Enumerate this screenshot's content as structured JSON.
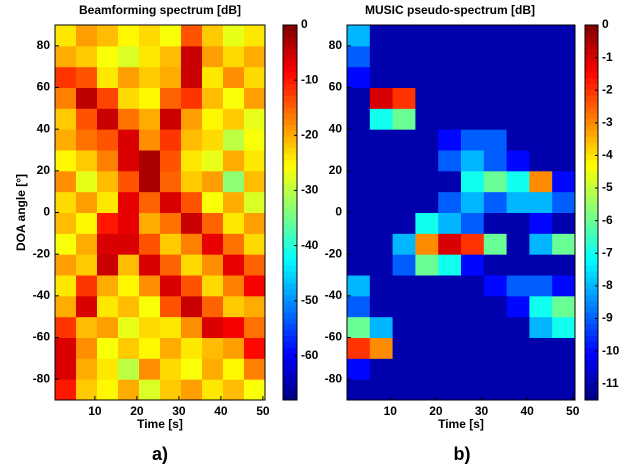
{
  "chart_data": [
    {
      "type": "heatmap",
      "title": "Beamforming spectrum [dB]",
      "xlabel": "Time [s]",
      "ylabel": "DOA angle [°]",
      "panel_label": "a)",
      "colormap": "jet",
      "x": [
        3,
        8,
        13,
        18,
        23,
        28,
        33,
        38,
        43,
        48
      ],
      "y": [
        -85,
        -75,
        -65,
        -55,
        -45,
        -35,
        -25,
        -15,
        -5,
        5,
        15,
        25,
        35,
        45,
        55,
        65,
        75,
        85
      ],
      "values": [
        [
          -10,
          -22,
          -25,
          -20,
          -28,
          -22,
          -19,
          -24,
          -21,
          -26
        ],
        [
          -6,
          -20,
          -24,
          -30,
          -18,
          -23,
          -26,
          -20,
          -25,
          -17
        ],
        [
          -6,
          -18,
          -26,
          -22,
          -25,
          -20,
          -24,
          -21,
          -19,
          -9
        ],
        [
          -12,
          -21,
          -19,
          -27,
          -23,
          -24,
          -18,
          -6,
          -8,
          -16
        ],
        [
          -20,
          -6,
          -24,
          -21,
          -26,
          -14,
          -5,
          -15,
          -22,
          -20
        ],
        [
          -24,
          -12,
          -20,
          -25,
          -18,
          -6,
          -14,
          -23,
          -17,
          -8
        ],
        [
          -19,
          -22,
          -5,
          -21,
          -6,
          -15,
          -23,
          -18,
          -7,
          -15
        ],
        [
          -26,
          -20,
          -6,
          -6,
          -14,
          -22,
          -17,
          -7,
          -16,
          -23
        ],
        [
          -21,
          -25,
          -10,
          -7,
          -20,
          -16,
          -5,
          -15,
          -24,
          -19
        ],
        [
          -23,
          -19,
          -24,
          -7,
          -15,
          -6,
          -14,
          -26,
          -20,
          -28
        ],
        [
          -18,
          -27,
          -21,
          -14,
          -3,
          -15,
          -22,
          -19,
          -33,
          -21
        ],
        [
          -25,
          -22,
          -17,
          -6,
          -3,
          -14,
          -24,
          -27,
          -20,
          -24
        ],
        [
          -20,
          -16,
          -14,
          -6,
          -18,
          -12,
          -21,
          -23,
          -30,
          -26
        ],
        [
          -22,
          -14,
          -5,
          -16,
          -20,
          -5,
          -19,
          -25,
          -22,
          -27
        ],
        [
          -17,
          -4,
          -13,
          -23,
          -25,
          -15,
          -12,
          -21,
          -26,
          -19
        ],
        [
          -12,
          -14,
          -24,
          -19,
          -22,
          -20,
          -5,
          -24,
          -18,
          -23
        ],
        [
          -20,
          -22,
          -26,
          -28,
          -24,
          -21,
          -5,
          -19,
          -23,
          -20
        ],
        [
          -24,
          -19,
          -21,
          -25,
          -23,
          -26,
          -14,
          -22,
          -27,
          -24
        ]
      ],
      "xlim": [
        0.5,
        50.5
      ],
      "xticks": [
        10,
        20,
        30,
        40,
        50
      ],
      "ylim": [
        -90,
        90
      ],
      "yticks": [
        -80,
        -60,
        -40,
        -20,
        0,
        20,
        40,
        60,
        80
      ],
      "clim": [
        -68,
        0
      ],
      "cticks": [
        0,
        -10,
        -20,
        -30,
        -40,
        -50,
        -60
      ]
    },
    {
      "type": "heatmap",
      "title": "MUSIC pseudo-spectrum [dB]",
      "xlabel": "Time [s]",
      "panel_label": "b)",
      "colormap": "jet",
      "x": [
        3,
        8,
        13,
        18,
        23,
        28,
        33,
        38,
        43,
        48
      ],
      "y": [
        -85,
        -75,
        -65,
        -55,
        -45,
        -35,
        -25,
        -15,
        -5,
        5,
        15,
        25,
        35,
        45,
        55,
        65,
        75,
        85
      ],
      "values": [
        [
          -11,
          -11,
          -11,
          -11,
          -11,
          -11,
          -11,
          -11,
          -11,
          -11
        ],
        [
          -10,
          -11,
          -11,
          -11,
          -11,
          -11,
          -11,
          -11,
          -11,
          -11
        ],
        [
          -2,
          -3,
          -11,
          -11,
          -11,
          -11,
          -11,
          -11,
          -11,
          -11
        ],
        [
          -6,
          -8,
          -11,
          -11,
          -11,
          -11,
          -11,
          -11,
          -8,
          -7
        ],
        [
          -9,
          -11,
          -11,
          -11,
          -11,
          -11,
          -11,
          -10,
          -7,
          -6
        ],
        [
          -8,
          -11,
          -11,
          -11,
          -11,
          -11,
          -10,
          -9,
          -9,
          -10
        ],
        [
          -11,
          -11,
          -9,
          -6,
          -7,
          -10,
          -11,
          -11,
          -11,
          -11
        ],
        [
          -11,
          -11,
          -8,
          -3,
          -1,
          -2,
          -6,
          -11,
          -8,
          -6
        ],
        [
          -11,
          -11,
          -11,
          -7,
          -8,
          -9,
          -11,
          -11,
          -10,
          -11
        ],
        [
          -11,
          -11,
          -11,
          -11,
          -9,
          -8,
          -9,
          -8,
          -8,
          -9
        ],
        [
          -11,
          -11,
          -11,
          -11,
          -11,
          -7,
          -6,
          -7,
          -3,
          -10
        ],
        [
          -11,
          -11,
          -11,
          -11,
          -9,
          -8,
          -9,
          -10,
          -11,
          -11
        ],
        [
          -11,
          -11,
          -11,
          -11,
          -10,
          -9,
          -9,
          -11,
          -11,
          -11
        ],
        [
          -11,
          -7,
          -6,
          -11,
          -11,
          -11,
          -11,
          -11,
          -11,
          -11
        ],
        [
          -11,
          -1,
          -2,
          -11,
          -11,
          -11,
          -11,
          -11,
          -11,
          -11
        ],
        [
          -10,
          -11,
          -11,
          -11,
          -11,
          -11,
          -11,
          -11,
          -11,
          -11
        ],
        [
          -9,
          -11,
          -11,
          -11,
          -11,
          -11,
          -11,
          -11,
          -11,
          -11
        ],
        [
          -8,
          -11,
          -11,
          -11,
          -11,
          -11,
          -11,
          -11,
          -11,
          -11
        ]
      ],
      "xlim": [
        0.5,
        50.5
      ],
      "xticks": [
        10,
        20,
        30,
        40,
        50
      ],
      "ylim": [
        -90,
        90
      ],
      "yticks": [
        -80,
        -60,
        -40,
        -20,
        0,
        20,
        40,
        60,
        80
      ],
      "clim": [
        -11.5,
        0
      ],
      "cticks": [
        0,
        -1,
        -2,
        -3,
        -4,
        -5,
        -6,
        -7,
        -8,
        -9,
        -10,
        -11
      ]
    }
  ]
}
